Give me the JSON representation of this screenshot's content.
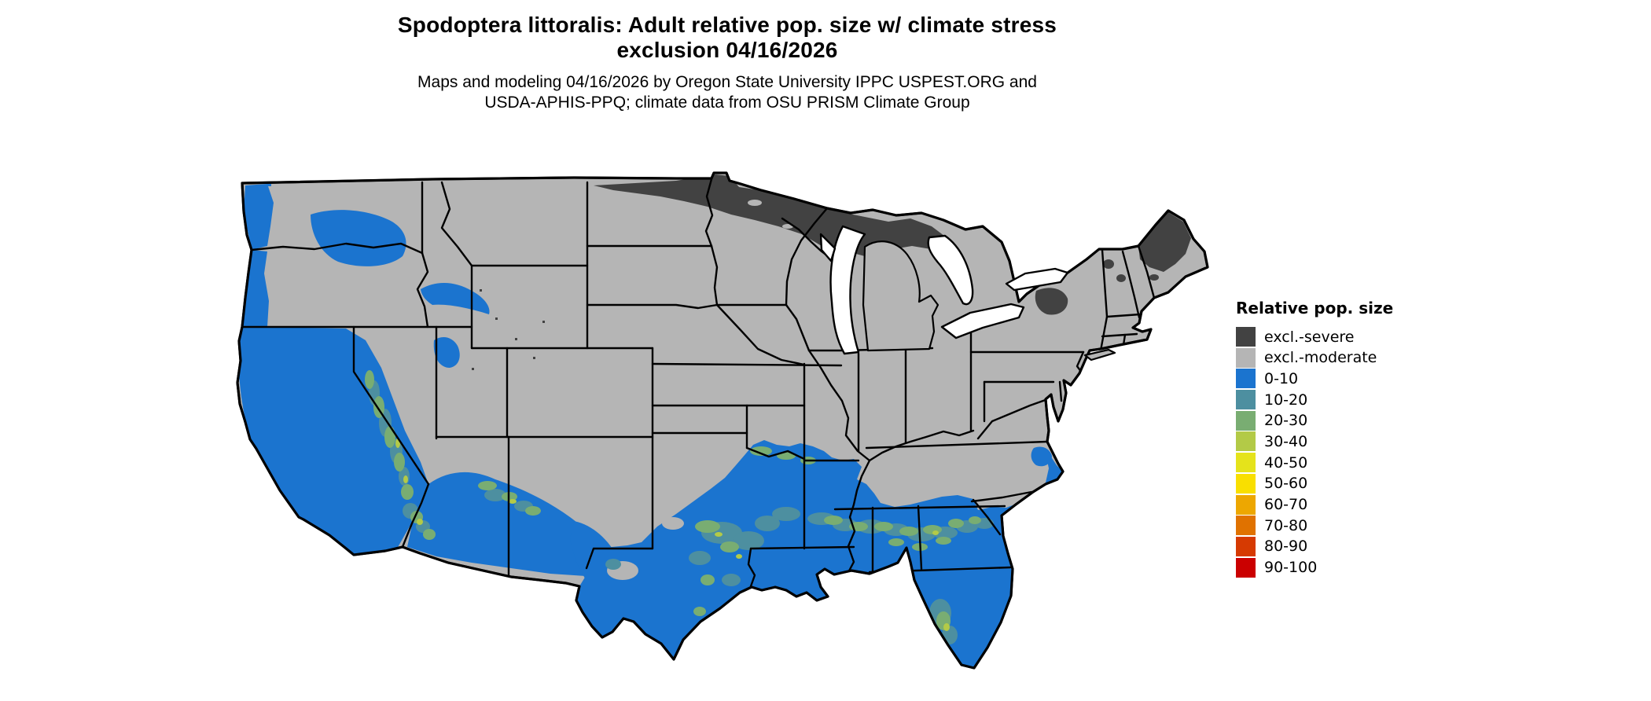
{
  "header": {
    "title_line1": "Spodoptera littoralis: Adult relative pop. size w/ climate stress",
    "title_line2": "exclusion 04/16/2026",
    "subtitle_line1": "Maps and modeling 04/16/2026 by Oregon State University IPPC USPEST.ORG and",
    "subtitle_line2": "USDA-APHIS-PPQ; climate data from OSU PRISM Climate Group"
  },
  "legend": {
    "title": "Relative pop. size",
    "items": [
      {
        "label": "excl.-severe",
        "color": "#424242"
      },
      {
        "label": "excl.-moderate",
        "color": "#b5b5b5"
      },
      {
        "label": "0-10",
        "color": "#1b74cf"
      },
      {
        "label": "10-20",
        "color": "#4d8fa0"
      },
      {
        "label": "20-30",
        "color": "#79ad72"
      },
      {
        "label": "30-40",
        "color": "#b3ca47"
      },
      {
        "label": "40-50",
        "color": "#e5e31b"
      },
      {
        "label": "50-60",
        "color": "#f9df00"
      },
      {
        "label": "60-70",
        "color": "#eda701"
      },
      {
        "label": "70-80",
        "color": "#e07200"
      },
      {
        "label": "80-90",
        "color": "#d63a02"
      },
      {
        "label": "90-100",
        "color": "#cb0000"
      }
    ]
  },
  "map": {
    "background_color": "#ffffff",
    "land_base_color": "#b5b5b5",
    "border_color": "#000000",
    "water_color": "#ffffff",
    "projection_note": "Contiguous United States with state boundaries; raster values shaded per legend"
  }
}
